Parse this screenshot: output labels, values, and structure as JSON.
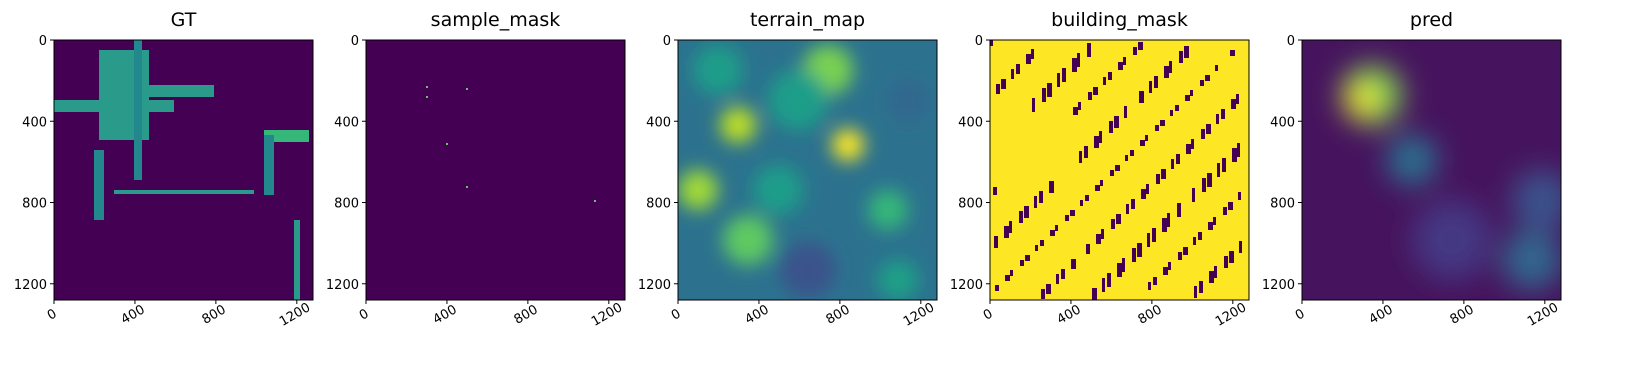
{
  "chart_data": [
    {
      "type": "image",
      "title": "GT",
      "color": "#440154",
      "xlim": [
        0,
        1280
      ],
      "ylim": [
        1280,
        0
      ],
      "xticks": [
        0,
        400,
        800,
        1200
      ],
      "yticks": [
        0,
        400,
        800,
        1200
      ]
    },
    {
      "type": "image",
      "title": "sample_mask",
      "color": "#440154",
      "xlim": [
        0,
        1280
      ],
      "ylim": [
        1280,
        0
      ],
      "xticks": [
        0,
        400,
        800,
        1200
      ],
      "yticks": [
        0,
        400,
        800,
        1200
      ]
    },
    {
      "type": "image",
      "title": "terrain_map",
      "color": "#2c728e",
      "xlim": [
        0,
        1280
      ],
      "ylim": [
        1280,
        0
      ],
      "xticks": [
        0,
        400,
        800,
        1200
      ],
      "yticks": [
        0,
        400,
        800,
        1200
      ]
    },
    {
      "type": "image",
      "title": "building_mask",
      "color": "#fde725",
      "xlim": [
        0,
        1280
      ],
      "ylim": [
        1280,
        0
      ],
      "xticks": [
        0,
        400,
        800,
        1200
      ],
      "yticks": [
        0,
        400,
        800,
        1200
      ]
    },
    {
      "type": "image",
      "title": "pred",
      "color": "#46145e",
      "xlim": [
        0,
        1280
      ],
      "ylim": [
        1280,
        0
      ],
      "xticks": [
        0,
        400,
        800,
        1200
      ],
      "yticks": [
        0,
        400,
        800,
        1200
      ]
    }
  ]
}
